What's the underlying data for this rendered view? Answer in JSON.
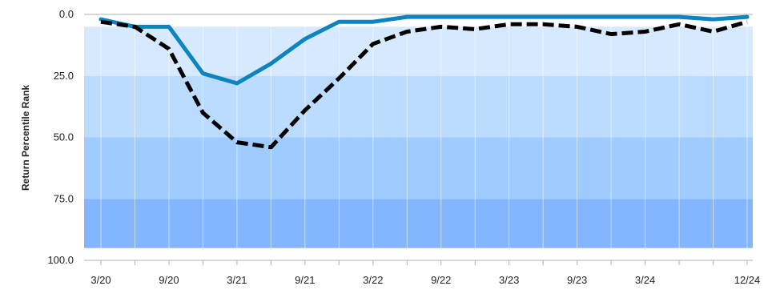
{
  "chart_data": {
    "type": "line",
    "title": "",
    "xlabel": "",
    "ylabel": "Return Percentile Rank",
    "ylim": [
      0,
      100
    ],
    "y_inverted": true,
    "yticks": [
      "0.0",
      "25.0",
      "50.0",
      "75.0",
      "100.0"
    ],
    "x_tick_labels": [
      "3/20",
      "9/20",
      "3/21",
      "9/21",
      "3/22",
      "9/22",
      "3/23",
      "9/23",
      "3/24",
      "12/24"
    ],
    "x": [
      "3/20",
      "6/20",
      "9/20",
      "12/20",
      "3/21",
      "6/21",
      "9/21",
      "12/21",
      "3/22",
      "6/22",
      "9/22",
      "12/22",
      "3/23",
      "6/23",
      "9/23",
      "12/23",
      "3/24",
      "6/24",
      "9/24",
      "12/24"
    ],
    "bands": [
      {
        "from": 5,
        "to": 25,
        "color": "#d6e9ff"
      },
      {
        "from": 25,
        "to": 50,
        "color": "#bcdcff"
      },
      {
        "from": 50,
        "to": 75,
        "color": "#9fcbff"
      },
      {
        "from": 75,
        "to": 95,
        "color": "#84b6ff"
      }
    ],
    "series": [
      {
        "color": "#0b84c0",
        "style": "solid",
        "values": [
          2,
          5,
          5,
          24,
          28,
          20,
          10,
          3,
          3,
          1,
          1,
          1,
          1,
          1,
          1,
          1,
          1,
          1,
          2,
          1
        ]
      },
      {
        "color": "#000000",
        "style": "dashed",
        "values": [
          3,
          5,
          14,
          40,
          52,
          54,
          39,
          26,
          12,
          7,
          5,
          6,
          4,
          4,
          5,
          8,
          7,
          4,
          7,
          3
        ]
      }
    ]
  }
}
